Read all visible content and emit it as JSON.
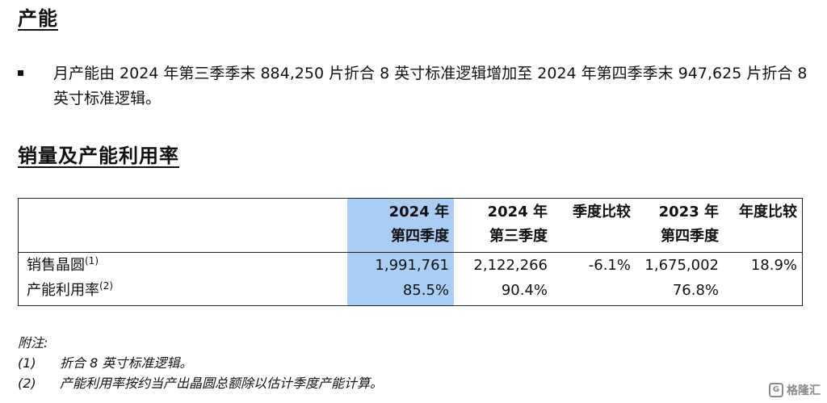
{
  "section1": {
    "title": "产能",
    "bullet": "月产能由 2024 年第三季季末 884,250 片折合 8 英寸标准逻辑增加至 2024 年第四季季末 947,625 片折合 8 英寸标准逻辑。"
  },
  "section2": {
    "title": "销量及产能利用率"
  },
  "table": {
    "columns": [
      {
        "line1": "2024 年",
        "line2": "第四季度"
      },
      {
        "line1": "2024 年",
        "line2": "第三季度"
      },
      {
        "line1": "季度比较",
        "line2": ""
      },
      {
        "line1": "2023 年",
        "line2": "第四季度"
      },
      {
        "line1": "年度比较",
        "line2": ""
      }
    ],
    "rows": [
      {
        "label": "销售晶圆",
        "sup": "(1)",
        "values": [
          "1,991,761",
          "2,122,266",
          "-6.1%",
          "1,675,002",
          "18.9%"
        ]
      },
      {
        "label": "产能利用率",
        "sup": "(2)",
        "values": [
          "85.5%",
          "90.4%",
          "",
          "76.8%",
          ""
        ]
      }
    ],
    "highlight_color": "#a9cdf3"
  },
  "notes": {
    "heading": "附注:",
    "items": [
      {
        "num": "(1)",
        "text": "折合 8 英寸标准逻辑。"
      },
      {
        "num": "(2)",
        "text": "产能利用率按约当产出晶圆总额除以估计季度产能计算。"
      }
    ]
  },
  "watermark": {
    "logo": "G",
    "text": "格隆汇"
  }
}
